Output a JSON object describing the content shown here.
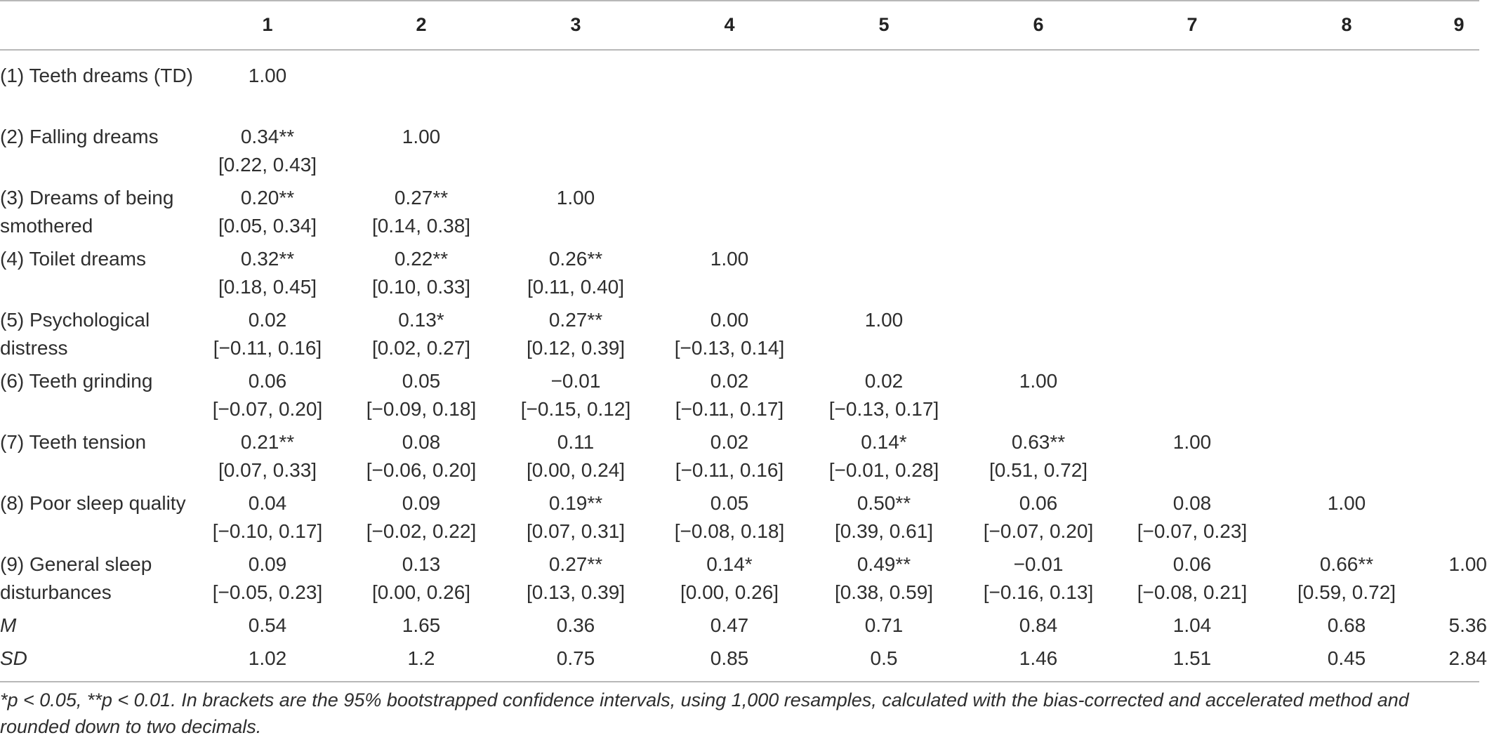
{
  "table": {
    "column_headers": [
      "1",
      "2",
      "3",
      "4",
      "5",
      "6",
      "7",
      "8",
      "9"
    ],
    "rows": [
      {
        "label": "(1) Teeth dreams (TD)",
        "cells": [
          {
            "value": "1.00",
            "ci": ""
          },
          {
            "value": "",
            "ci": ""
          },
          {
            "value": "",
            "ci": ""
          },
          {
            "value": "",
            "ci": ""
          },
          {
            "value": "",
            "ci": ""
          },
          {
            "value": "",
            "ci": ""
          },
          {
            "value": "",
            "ci": ""
          },
          {
            "value": "",
            "ci": ""
          },
          {
            "value": "",
            "ci": ""
          }
        ]
      },
      {
        "label": "(2) Falling dreams",
        "cells": [
          {
            "value": "0.34**",
            "ci": "[0.22, 0.43]"
          },
          {
            "value": "1.00",
            "ci": ""
          },
          {
            "value": "",
            "ci": ""
          },
          {
            "value": "",
            "ci": ""
          },
          {
            "value": "",
            "ci": ""
          },
          {
            "value": "",
            "ci": ""
          },
          {
            "value": "",
            "ci": ""
          },
          {
            "value": "",
            "ci": ""
          },
          {
            "value": "",
            "ci": ""
          }
        ]
      },
      {
        "label": "(3) Dreams of being smothered",
        "cells": [
          {
            "value": "0.20**",
            "ci": "[0.05, 0.34]"
          },
          {
            "value": "0.27**",
            "ci": "[0.14, 0.38]"
          },
          {
            "value": "1.00",
            "ci": ""
          },
          {
            "value": "",
            "ci": ""
          },
          {
            "value": "",
            "ci": ""
          },
          {
            "value": "",
            "ci": ""
          },
          {
            "value": "",
            "ci": ""
          },
          {
            "value": "",
            "ci": ""
          },
          {
            "value": "",
            "ci": ""
          }
        ]
      },
      {
        "label": "(4) Toilet dreams",
        "cells": [
          {
            "value": "0.32**",
            "ci": "[0.18, 0.45]"
          },
          {
            "value": "0.22**",
            "ci": "[0.10, 0.33]"
          },
          {
            "value": "0.26**",
            "ci": "[0.11, 0.40]"
          },
          {
            "value": "1.00",
            "ci": ""
          },
          {
            "value": "",
            "ci": ""
          },
          {
            "value": "",
            "ci": ""
          },
          {
            "value": "",
            "ci": ""
          },
          {
            "value": "",
            "ci": ""
          },
          {
            "value": "",
            "ci": ""
          }
        ]
      },
      {
        "label": "(5) Psychological distress",
        "cells": [
          {
            "value": "0.02",
            "ci": "[−0.11, 0.16]"
          },
          {
            "value": "0.13*",
            "ci": "[0.02, 0.27]"
          },
          {
            "value": "0.27**",
            "ci": "[0.12, 0.39]"
          },
          {
            "value": "0.00",
            "ci": "[−0.13, 0.14]"
          },
          {
            "value": "1.00",
            "ci": ""
          },
          {
            "value": "",
            "ci": ""
          },
          {
            "value": "",
            "ci": ""
          },
          {
            "value": "",
            "ci": ""
          },
          {
            "value": "",
            "ci": ""
          }
        ]
      },
      {
        "label": "(6) Teeth grinding",
        "cells": [
          {
            "value": "0.06",
            "ci": "[−0.07, 0.20]"
          },
          {
            "value": "0.05",
            "ci": "[−0.09, 0.18]"
          },
          {
            "value": "−0.01",
            "ci": "[−0.15, 0.12]"
          },
          {
            "value": "0.02",
            "ci": "[−0.11, 0.17]"
          },
          {
            "value": "0.02",
            "ci": "[−0.13, 0.17]"
          },
          {
            "value": "1.00",
            "ci": ""
          },
          {
            "value": "",
            "ci": ""
          },
          {
            "value": "",
            "ci": ""
          },
          {
            "value": "",
            "ci": ""
          }
        ]
      },
      {
        "label": "(7) Teeth tension",
        "cells": [
          {
            "value": "0.21**",
            "ci": "[0.07, 0.33]"
          },
          {
            "value": "0.08",
            "ci": "[−0.06, 0.20]"
          },
          {
            "value": "0.11",
            "ci": "[0.00, 0.24]"
          },
          {
            "value": "0.02",
            "ci": "[−0.11, 0.16]"
          },
          {
            "value": "0.14*",
            "ci": "[−0.01, 0.28]"
          },
          {
            "value": "0.63**",
            "ci": "[0.51, 0.72]"
          },
          {
            "value": "1.00",
            "ci": ""
          },
          {
            "value": "",
            "ci": ""
          },
          {
            "value": "",
            "ci": ""
          }
        ]
      },
      {
        "label": "(8) Poor sleep quality",
        "cells": [
          {
            "value": "0.04",
            "ci": "[−0.10, 0.17]"
          },
          {
            "value": "0.09",
            "ci": "[−0.02, 0.22]"
          },
          {
            "value": "0.19**",
            "ci": "[0.07, 0.31]"
          },
          {
            "value": "0.05",
            "ci": "[−0.08, 0.18]"
          },
          {
            "value": "0.50**",
            "ci": "[0.39, 0.61]"
          },
          {
            "value": "0.06",
            "ci": "[−0.07, 0.20]"
          },
          {
            "value": "0.08",
            "ci": "[−0.07, 0.23]"
          },
          {
            "value": "1.00",
            "ci": ""
          },
          {
            "value": "",
            "ci": ""
          }
        ]
      },
      {
        "label": "(9) General sleep disturbances",
        "cells": [
          {
            "value": "0.09",
            "ci": "[−0.05, 0.23]"
          },
          {
            "value": "0.13",
            "ci": "[0.00, 0.26]"
          },
          {
            "value": "0.27**",
            "ci": "[0.13, 0.39]"
          },
          {
            "value": "0.14*",
            "ci": "[0.00, 0.26]"
          },
          {
            "value": "0.49**",
            "ci": "[0.38, 0.59]"
          },
          {
            "value": "−0.01",
            "ci": "[−0.16, 0.13]"
          },
          {
            "value": "0.06",
            "ci": "[−0.08, 0.21]"
          },
          {
            "value": "0.66**",
            "ci": "[0.59, 0.72]"
          },
          {
            "value": "1.00",
            "ci": ""
          }
        ]
      },
      {
        "label": "M",
        "italic": true,
        "cells": [
          {
            "value": "0.54",
            "ci": ""
          },
          {
            "value": "1.65",
            "ci": ""
          },
          {
            "value": "0.36",
            "ci": ""
          },
          {
            "value": "0.47",
            "ci": ""
          },
          {
            "value": "0.71",
            "ci": ""
          },
          {
            "value": "0.84",
            "ci": ""
          },
          {
            "value": "1.04",
            "ci": ""
          },
          {
            "value": "0.68",
            "ci": ""
          },
          {
            "value": "5.36",
            "ci": ""
          }
        ]
      },
      {
        "label": "SD",
        "italic": true,
        "cells": [
          {
            "value": "1.02",
            "ci": ""
          },
          {
            "value": "1.2",
            "ci": ""
          },
          {
            "value": "0.75",
            "ci": ""
          },
          {
            "value": "0.85",
            "ci": ""
          },
          {
            "value": "0.5",
            "ci": ""
          },
          {
            "value": "1.46",
            "ci": ""
          },
          {
            "value": "1.51",
            "ci": ""
          },
          {
            "value": "0.45",
            "ci": ""
          },
          {
            "value": "2.84",
            "ci": ""
          }
        ]
      }
    ],
    "footnote": "*p < 0.05, **p < 0.01. In brackets are the 95% bootstrapped confidence intervals, using 1,000 resamples, calculated with the bias-corrected and accelerated method and rounded down to two decimals."
  }
}
